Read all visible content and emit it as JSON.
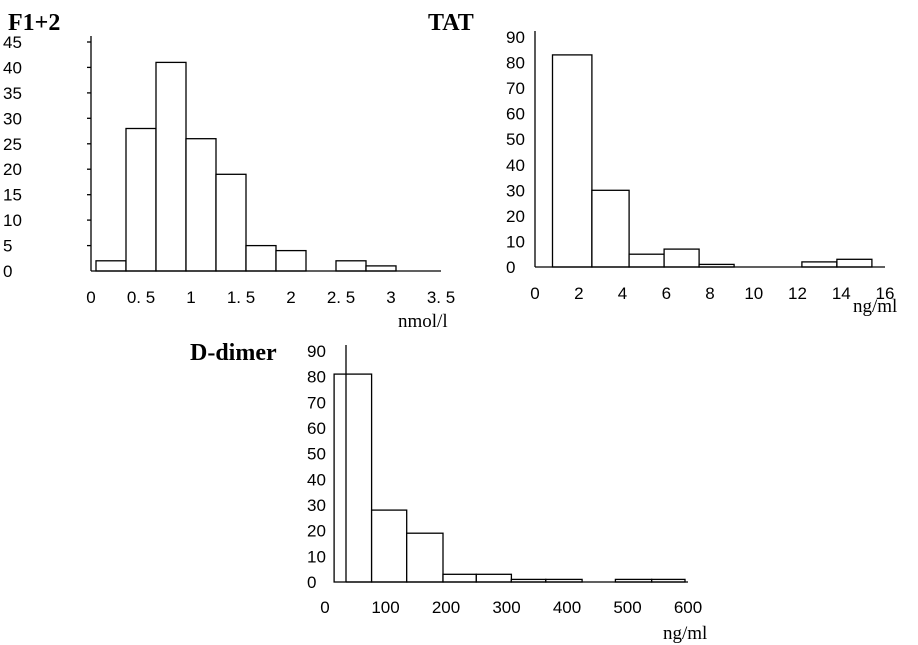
{
  "chart_data": [
    {
      "type": "bar",
      "title": "F1+2",
      "xlabel": "nmol/l",
      "ylabel": "",
      "xlim": [
        0,
        3.5
      ],
      "ylim": [
        0,
        45
      ],
      "x_ticks": [
        "0",
        "0. 5",
        "1",
        "1. 5",
        "2",
        "2. 5",
        "3",
        "3. 5"
      ],
      "y_ticks": [
        "0",
        "5",
        "10",
        "15",
        "20",
        "25",
        "30",
        "35",
        "40",
        "45"
      ],
      "bins": [
        {
          "start": 0.05,
          "end": 0.35,
          "value": 2
        },
        {
          "start": 0.35,
          "end": 0.65,
          "value": 28
        },
        {
          "start": 0.65,
          "end": 0.95,
          "value": 41
        },
        {
          "start": 0.95,
          "end": 1.25,
          "value": 26
        },
        {
          "start": 1.25,
          "end": 1.55,
          "value": 19
        },
        {
          "start": 1.55,
          "end": 1.85,
          "value": 5
        },
        {
          "start": 1.85,
          "end": 2.15,
          "value": 4
        },
        {
          "start": 2.15,
          "end": 2.45,
          "value": 0
        },
        {
          "start": 2.45,
          "end": 2.75,
          "value": 2
        },
        {
          "start": 2.75,
          "end": 3.05,
          "value": 1
        }
      ]
    },
    {
      "type": "bar",
      "title": "TAT",
      "xlabel": "ng/ml",
      "ylabel": "",
      "xlim": [
        0,
        16
      ],
      "ylim": [
        0,
        90
      ],
      "x_ticks": [
        "0",
        "2",
        "4",
        "6",
        "8",
        "10",
        "12",
        "14",
        "16"
      ],
      "y_ticks": [
        "0",
        "10",
        "20",
        "30",
        "40",
        "50",
        "60",
        "70",
        "80",
        "90"
      ],
      "bins": [
        {
          "start": 0.8,
          "end": 2.6,
          "value": 83
        },
        {
          "start": 2.6,
          "end": 4.3,
          "value": 30
        },
        {
          "start": 4.3,
          "end": 5.9,
          "value": 5
        },
        {
          "start": 5.9,
          "end": 7.5,
          "value": 7
        },
        {
          "start": 7.5,
          "end": 9.1,
          "value": 1
        },
        {
          "start": 9.1,
          "end": 10.6,
          "value": 0
        },
        {
          "start": 10.6,
          "end": 12.2,
          "value": 0
        },
        {
          "start": 12.2,
          "end": 13.8,
          "value": 2
        },
        {
          "start": 13.8,
          "end": 15.4,
          "value": 3
        }
      ]
    },
    {
      "type": "bar",
      "title": "D-dimer",
      "xlabel": "ng/ml",
      "ylabel": "",
      "xlim": [
        0,
        600
      ],
      "ylim": [
        0,
        90
      ],
      "x_ticks": [
        "0",
        "100",
        "200",
        "300",
        "400",
        "500",
        "600"
      ],
      "y_ticks": [
        "0",
        "10",
        "20",
        "30",
        "40",
        "50",
        "60",
        "70",
        "80",
        "90"
      ],
      "bins": [
        {
          "start": 15,
          "end": 77,
          "value": 81
        },
        {
          "start": 77,
          "end": 135,
          "value": 28
        },
        {
          "start": 135,
          "end": 195,
          "value": 19
        },
        {
          "start": 195,
          "end": 250,
          "value": 3
        },
        {
          "start": 250,
          "end": 308,
          "value": 3
        },
        {
          "start": 308,
          "end": 365,
          "value": 1
        },
        {
          "start": 365,
          "end": 425,
          "value": 1
        },
        {
          "start": 425,
          "end": 480,
          "value": 0
        },
        {
          "start": 480,
          "end": 540,
          "value": 1
        },
        {
          "start": 540,
          "end": 595,
          "value": 1
        }
      ]
    }
  ]
}
